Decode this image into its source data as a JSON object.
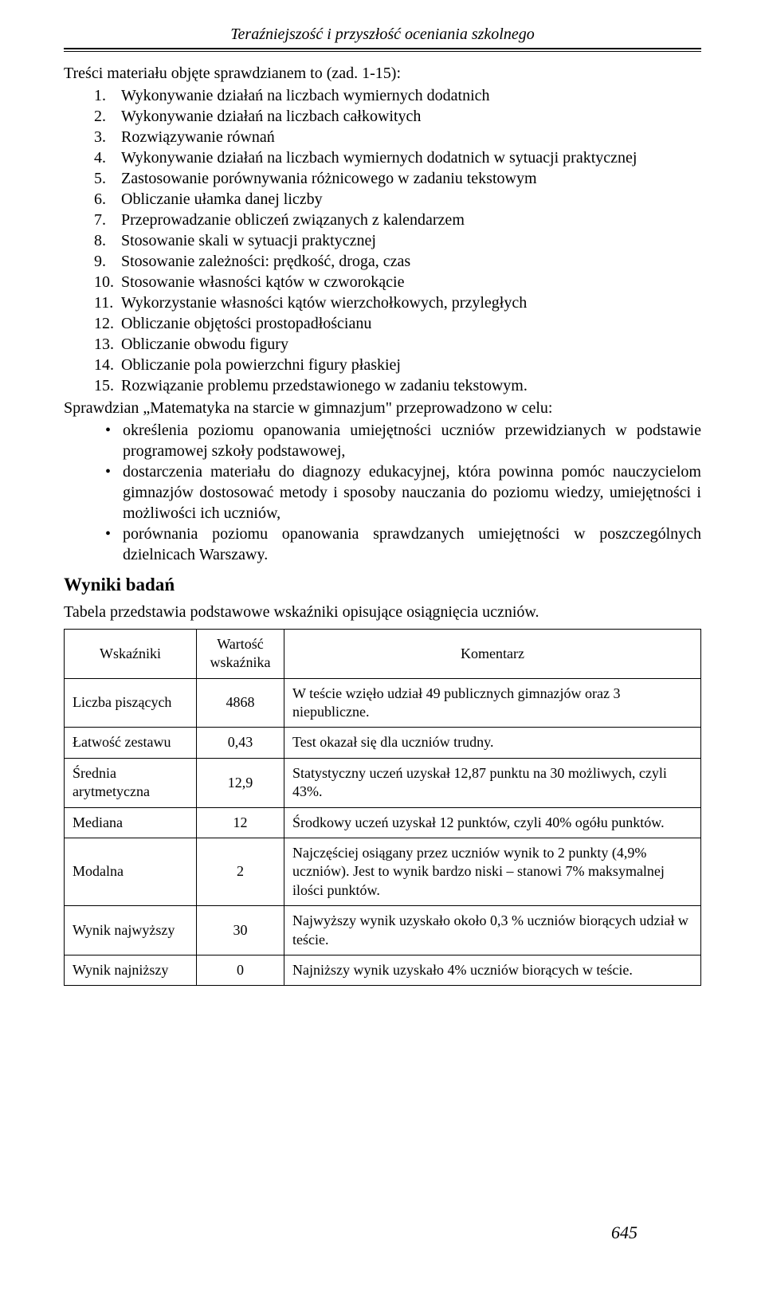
{
  "header": {
    "title": "Teraźniejszość i przyszłość oceniania szkolnego"
  },
  "intro": "Treści materiału objęte sprawdzianem to (zad. 1-15):",
  "numbered": [
    "Wykonywanie działań na liczbach wymiernych dodatnich",
    "Wykonywanie działań na liczbach całkowitych",
    "Rozwiązywanie równań",
    "Wykonywanie działań na liczbach wymiernych dodatnich w sytuacji praktycznej",
    "Zastosowanie porównywania różnicowego w zadaniu tekstowym",
    "Obliczanie ułamka danej liczby",
    "Przeprowadzanie obliczeń związanych z kalendarzem",
    "Stosowanie skali w sytuacji praktycznej",
    "Stosowanie zależności: prędkość, droga, czas",
    "Stosowanie własności kątów w czworokącie",
    "Wykorzystanie własności kątów wierzchołkowych, przyległych",
    "Obliczanie objętości prostopadłościanu",
    "Obliczanie obwodu figury",
    "Obliczanie pola powierzchni figury płaskiej",
    "Rozwiązanie problemu przedstawionego w zadaniu tekstowym."
  ],
  "para1": "Sprawdzian „Matematyka na starcie w gimnazjum\" przeprowadzono w celu:",
  "bullets": [
    "określenia poziomu opanowania umiejętności uczniów przewidzianych w podstawie programowej szkoły podstawowej,",
    "dostarczenia materiału do diagnozy edukacyjnej, która powinna pomóc nauczycielom gimnazjów dostosować metody i sposoby nauczania do poziomu wiedzy, umiejętności i możliwości ich uczniów,",
    "porównania poziomu opanowania sprawdzanych umiejętności w poszczególnych dzielnicach Warszawy."
  ],
  "section_heading": "Wyniki badań",
  "table_caption": "Tabela przedstawia podstawowe wskaźniki opisujące osiągnięcia uczniów.",
  "table": {
    "headers": [
      "Wskaźniki",
      "Wartość wskaźnika",
      "Komentarz"
    ],
    "rows": [
      [
        "Liczba piszących",
        "4868",
        "W teście wzięło udział 49 publicznych gimnazjów oraz 3 niepubliczne."
      ],
      [
        "Łatwość zestawu",
        "0,43",
        "Test okazał się dla uczniów trudny."
      ],
      [
        "Średnia arytmetyczna",
        "12,9",
        "Statystyczny uczeń uzyskał 12,87 punktu na 30 możliwych, czyli 43%."
      ],
      [
        "Mediana",
        "12",
        "Środkowy uczeń uzyskał 12 punktów, czyli 40% ogółu punktów."
      ],
      [
        "Modalna",
        "2",
        "Najczęściej osiągany przez uczniów wynik to 2 punkty (4,9% uczniów). Jest to wynik bardzo niski – stanowi 7% maksymalnej ilości punktów."
      ],
      [
        "Wynik najwyższy",
        "30",
        "Najwyższy wynik uzyskało około 0,3 % uczniów biorących udział w teście."
      ],
      [
        "Wynik najniższy",
        "0",
        "Najniższy wynik uzyskało 4% uczniów biorących w teście."
      ]
    ]
  },
  "page_number": "645"
}
